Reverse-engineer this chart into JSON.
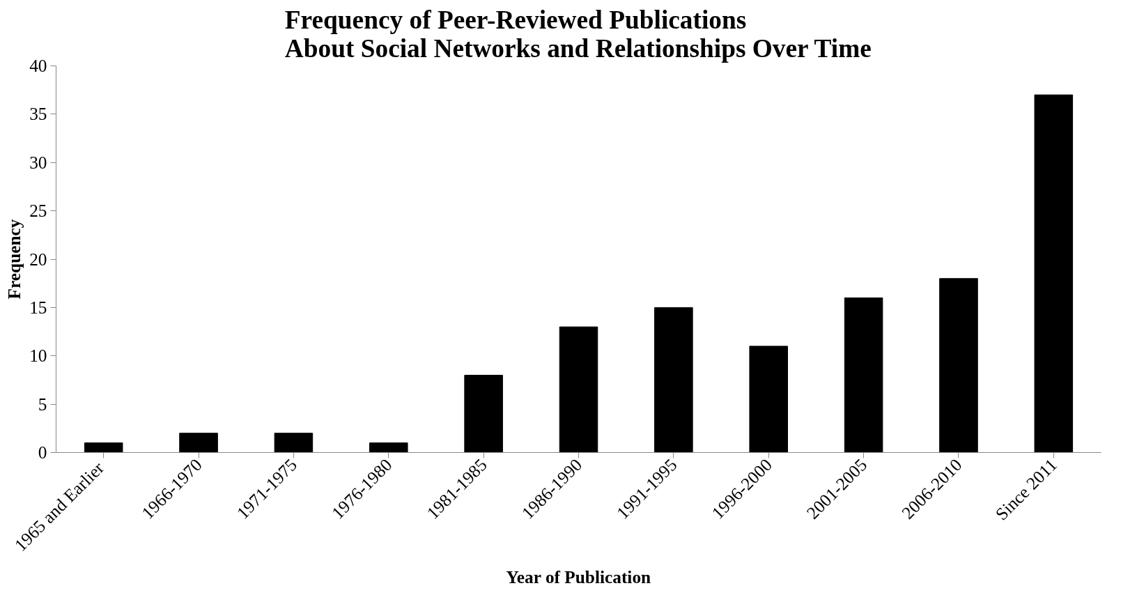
{
  "chart_data": {
    "type": "bar",
    "title": "Frequency of Peer-Reviewed Publications\nAbout Social Networks and Relationships Over Time",
    "xlabel": "Year of Publication",
    "ylabel": "Frequency",
    "categories": [
      "1965 and  Earlier",
      "1966-1970",
      "1971-1975",
      "1976-1980",
      "1981-1985",
      "1986-1990",
      "1991-1995",
      "1996-2000",
      "2001-2005",
      "2006-2010",
      "Since 2011"
    ],
    "values": [
      1,
      2,
      2,
      1,
      8,
      13,
      15,
      11,
      16,
      18,
      37
    ],
    "color": "#000000",
    "ylim": [
      0,
      40
    ],
    "yticks": [
      0,
      5,
      10,
      15,
      20,
      25,
      30,
      35,
      40
    ]
  }
}
